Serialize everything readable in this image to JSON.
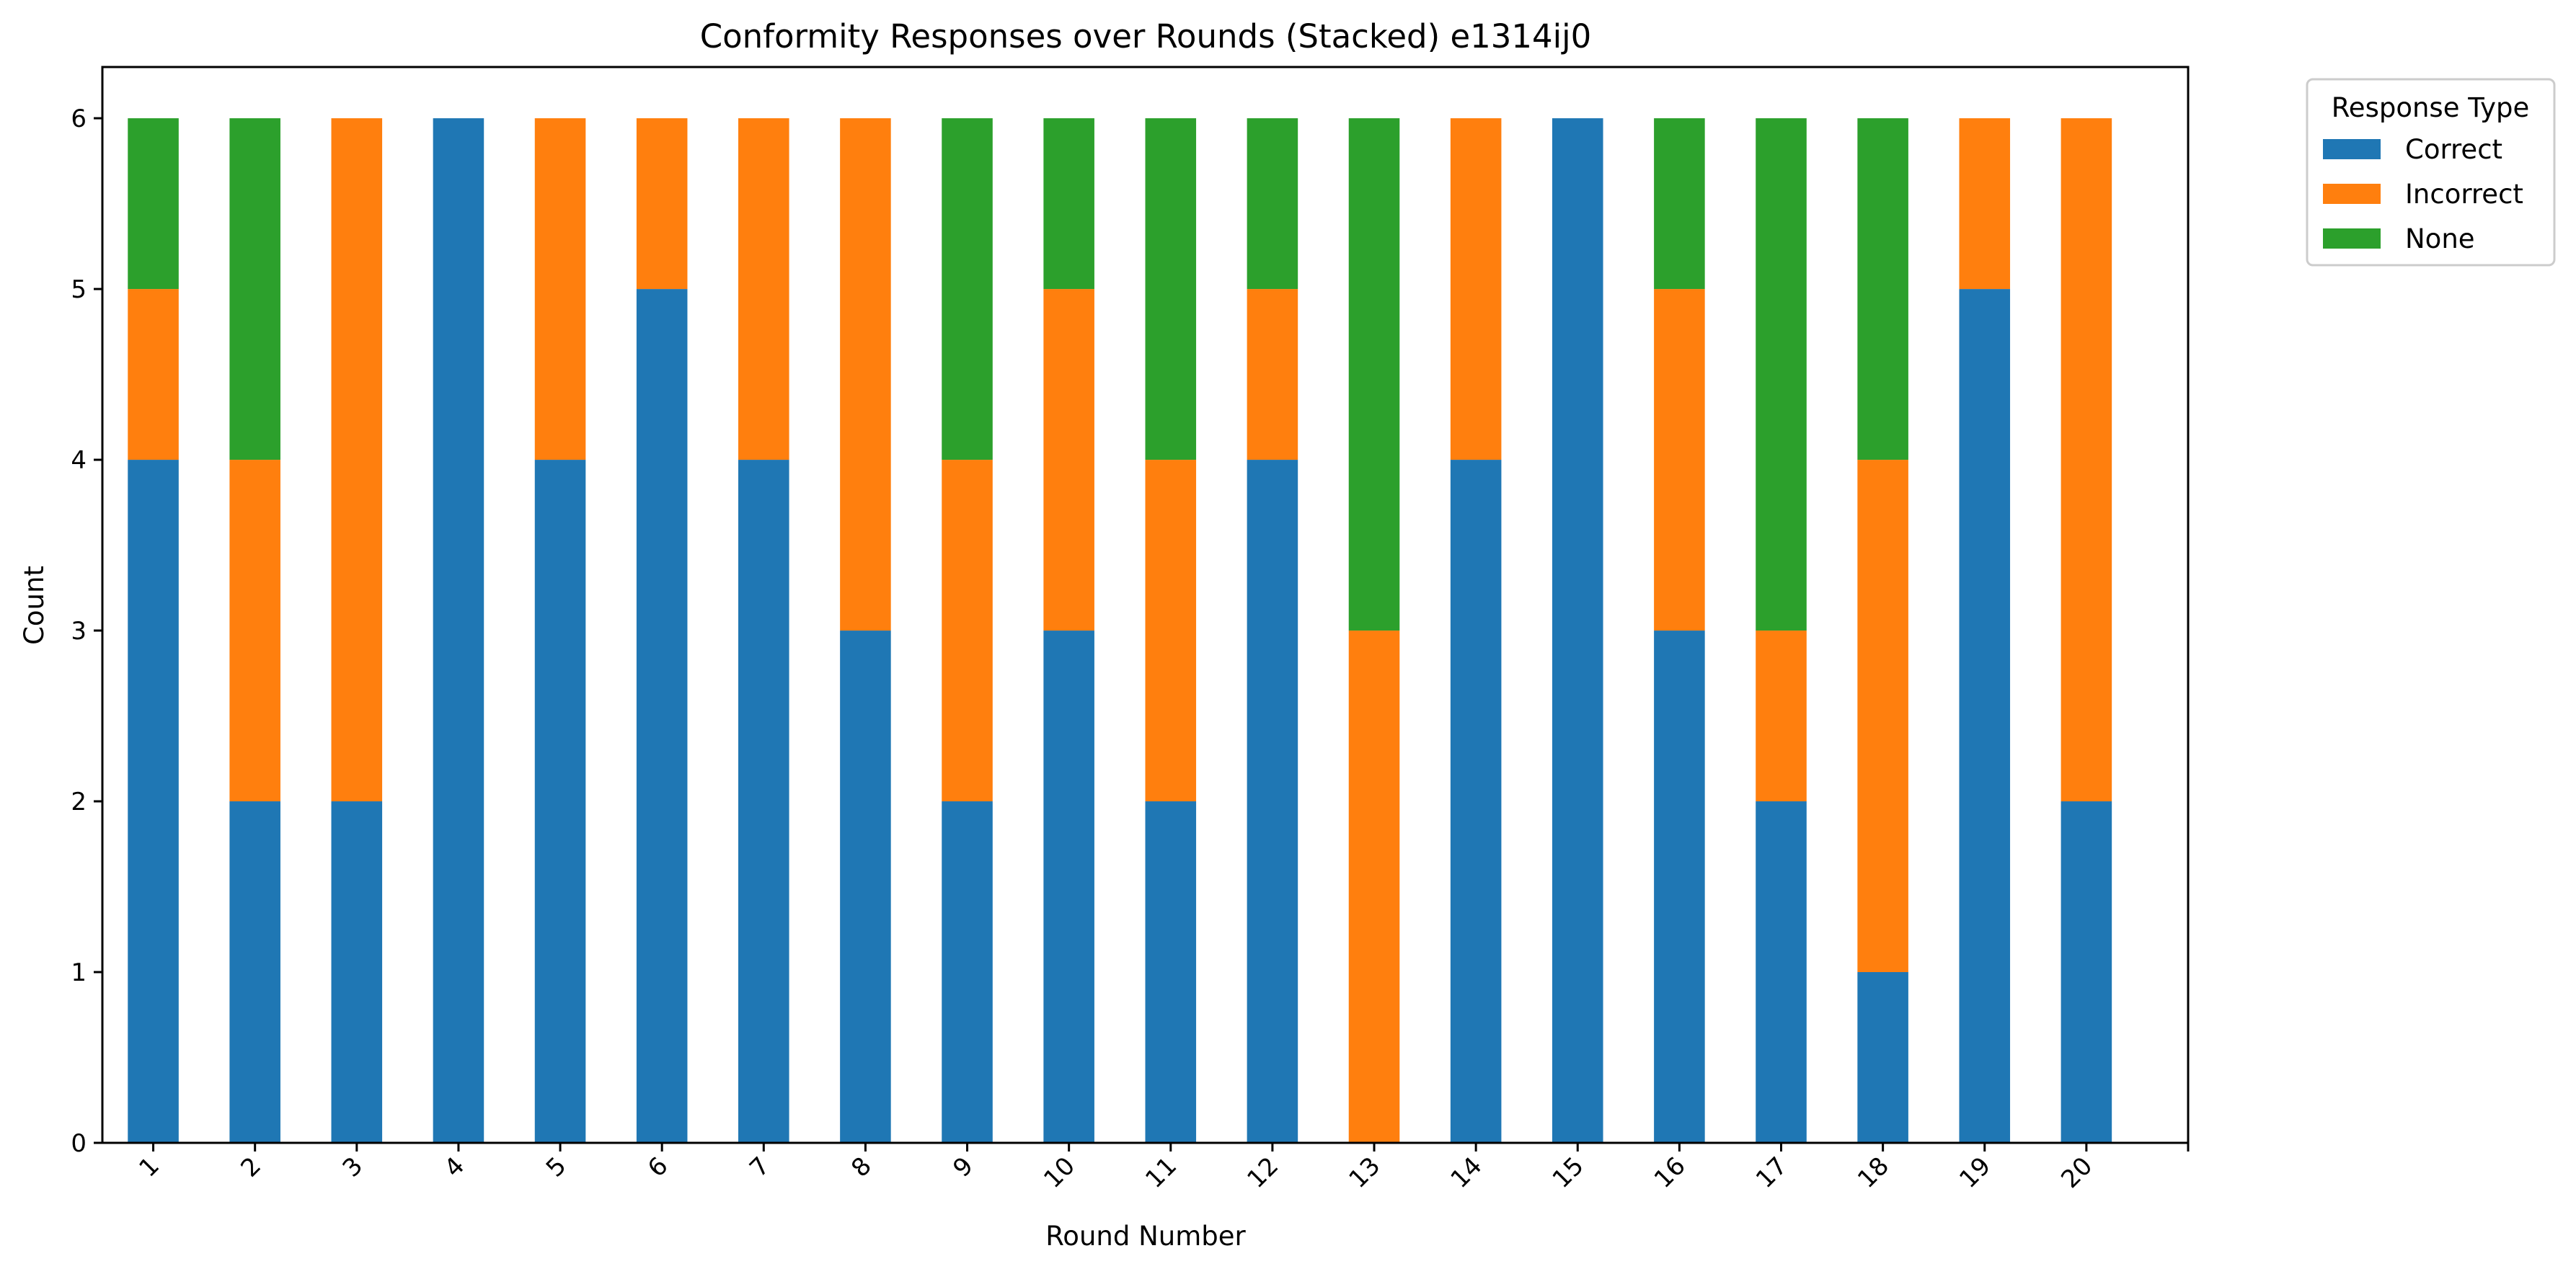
{
  "chart_data": {
    "type": "bar",
    "stacked": true,
    "title": "Conformity Responses over Rounds (Stacked) e1314ij0",
    "xlabel": "Round Number",
    "ylabel": "Count",
    "categories": [
      "1",
      "2",
      "3",
      "4",
      "5",
      "6",
      "7",
      "8",
      "9",
      "10",
      "11",
      "12",
      "13",
      "14",
      "15",
      "16",
      "17",
      "18",
      "19",
      "20"
    ],
    "ylim": [
      0,
      6.3
    ],
    "yticks": [
      0,
      1,
      2,
      3,
      4,
      5,
      6
    ],
    "grid": false,
    "legend": {
      "title": "Response Type",
      "placement": "outside top-right"
    },
    "series": [
      {
        "name": "Correct",
        "color": "#1f77b4",
        "values": [
          4,
          2,
          2,
          6,
          4,
          5,
          4,
          3,
          2,
          3,
          2,
          4,
          0,
          4,
          6,
          3,
          2,
          1,
          5,
          2
        ]
      },
      {
        "name": "Incorrect",
        "color": "#ff7f0e",
        "values": [
          1,
          2,
          4,
          0,
          2,
          1,
          2,
          3,
          2,
          2,
          2,
          1,
          3,
          2,
          0,
          2,
          1,
          3,
          1,
          4
        ]
      },
      {
        "name": "None",
        "color": "#2ca02c",
        "values": [
          1,
          2,
          0,
          0,
          0,
          0,
          0,
          0,
          2,
          1,
          2,
          1,
          3,
          0,
          0,
          1,
          3,
          2,
          0,
          0
        ]
      }
    ]
  }
}
